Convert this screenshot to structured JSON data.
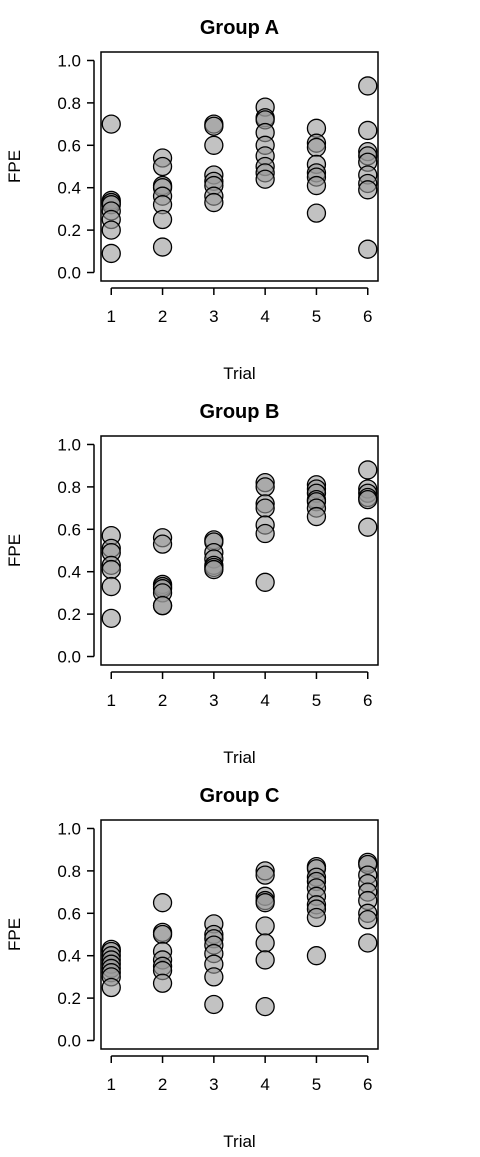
{
  "chart_data": [
    {
      "type": "scatter",
      "title": "Group A",
      "xlabel": "Trial",
      "ylabel": "FPE",
      "x_ticks": [
        "1",
        "2",
        "3",
        "4",
        "5",
        "6"
      ],
      "y_ticks": [
        "0.0",
        "0.2",
        "0.4",
        "0.6",
        "0.8",
        "1.0"
      ],
      "xlim": [
        0.8,
        6.2
      ],
      "ylim": [
        -0.04,
        1.04
      ],
      "grid": false,
      "points": [
        {
          "x": 1,
          "y": 0.7
        },
        {
          "x": 1,
          "y": 0.34
        },
        {
          "x": 1,
          "y": 0.33
        },
        {
          "x": 1,
          "y": 0.32
        },
        {
          "x": 1,
          "y": 0.29
        },
        {
          "x": 1,
          "y": 0.25
        },
        {
          "x": 1,
          "y": 0.2
        },
        {
          "x": 1,
          "y": 0.09
        },
        {
          "x": 2,
          "y": 0.54
        },
        {
          "x": 2,
          "y": 0.5
        },
        {
          "x": 2,
          "y": 0.41
        },
        {
          "x": 2,
          "y": 0.4
        },
        {
          "x": 2,
          "y": 0.36
        },
        {
          "x": 2,
          "y": 0.32
        },
        {
          "x": 2,
          "y": 0.25
        },
        {
          "x": 2,
          "y": 0.12
        },
        {
          "x": 3,
          "y": 0.7
        },
        {
          "x": 3,
          "y": 0.69
        },
        {
          "x": 3,
          "y": 0.6
        },
        {
          "x": 3,
          "y": 0.46
        },
        {
          "x": 3,
          "y": 0.43
        },
        {
          "x": 3,
          "y": 0.41
        },
        {
          "x": 3,
          "y": 0.36
        },
        {
          "x": 3,
          "y": 0.33
        },
        {
          "x": 4,
          "y": 0.78
        },
        {
          "x": 4,
          "y": 0.73
        },
        {
          "x": 4,
          "y": 0.72
        },
        {
          "x": 4,
          "y": 0.66
        },
        {
          "x": 4,
          "y": 0.6
        },
        {
          "x": 4,
          "y": 0.55
        },
        {
          "x": 4,
          "y": 0.5
        },
        {
          "x": 4,
          "y": 0.47
        },
        {
          "x": 4,
          "y": 0.44
        },
        {
          "x": 5,
          "y": 0.68
        },
        {
          "x": 5,
          "y": 0.61
        },
        {
          "x": 5,
          "y": 0.59
        },
        {
          "x": 5,
          "y": 0.51
        },
        {
          "x": 5,
          "y": 0.47
        },
        {
          "x": 5,
          "y": 0.45
        },
        {
          "x": 5,
          "y": 0.41
        },
        {
          "x": 5,
          "y": 0.28
        },
        {
          "x": 6,
          "y": 0.88
        },
        {
          "x": 6,
          "y": 0.67
        },
        {
          "x": 6,
          "y": 0.57
        },
        {
          "x": 6,
          "y": 0.55
        },
        {
          "x": 6,
          "y": 0.52
        },
        {
          "x": 6,
          "y": 0.46
        },
        {
          "x": 6,
          "y": 0.42
        },
        {
          "x": 6,
          "y": 0.39
        },
        {
          "x": 6,
          "y": 0.11
        }
      ]
    },
    {
      "type": "scatter",
      "title": "Group B",
      "xlabel": "Trial",
      "ylabel": "FPE",
      "x_ticks": [
        "1",
        "2",
        "3",
        "4",
        "5",
        "6"
      ],
      "y_ticks": [
        "0.0",
        "0.2",
        "0.4",
        "0.6",
        "0.8",
        "1.0"
      ],
      "xlim": [
        0.8,
        6.2
      ],
      "ylim": [
        -0.04,
        1.04
      ],
      "grid": false,
      "points": [
        {
          "x": 1,
          "y": 0.57
        },
        {
          "x": 1,
          "y": 0.51
        },
        {
          "x": 1,
          "y": 0.49
        },
        {
          "x": 1,
          "y": 0.43
        },
        {
          "x": 1,
          "y": 0.41
        },
        {
          "x": 1,
          "y": 0.33
        },
        {
          "x": 1,
          "y": 0.18
        },
        {
          "x": 2,
          "y": 0.56
        },
        {
          "x": 2,
          "y": 0.53
        },
        {
          "x": 2,
          "y": 0.34
        },
        {
          "x": 2,
          "y": 0.33
        },
        {
          "x": 2,
          "y": 0.32
        },
        {
          "x": 2,
          "y": 0.3
        },
        {
          "x": 2,
          "y": 0.24
        },
        {
          "x": 2,
          "y": 0.24
        },
        {
          "x": 3,
          "y": 0.55
        },
        {
          "x": 3,
          "y": 0.54
        },
        {
          "x": 3,
          "y": 0.49
        },
        {
          "x": 3,
          "y": 0.46
        },
        {
          "x": 3,
          "y": 0.43
        },
        {
          "x": 3,
          "y": 0.42
        },
        {
          "x": 3,
          "y": 0.41
        },
        {
          "x": 4,
          "y": 0.82
        },
        {
          "x": 4,
          "y": 0.8
        },
        {
          "x": 4,
          "y": 0.72
        },
        {
          "x": 4,
          "y": 0.7
        },
        {
          "x": 4,
          "y": 0.62
        },
        {
          "x": 4,
          "y": 0.58
        },
        {
          "x": 4,
          "y": 0.35
        },
        {
          "x": 5,
          "y": 0.81
        },
        {
          "x": 5,
          "y": 0.79
        },
        {
          "x": 5,
          "y": 0.77
        },
        {
          "x": 5,
          "y": 0.74
        },
        {
          "x": 5,
          "y": 0.73
        },
        {
          "x": 5,
          "y": 0.7
        },
        {
          "x": 5,
          "y": 0.66
        },
        {
          "x": 6,
          "y": 0.88
        },
        {
          "x": 6,
          "y": 0.79
        },
        {
          "x": 6,
          "y": 0.77
        },
        {
          "x": 6,
          "y": 0.75
        },
        {
          "x": 6,
          "y": 0.74
        },
        {
          "x": 6,
          "y": 0.61
        }
      ]
    },
    {
      "type": "scatter",
      "title": "Group C",
      "xlabel": "Trial",
      "ylabel": "FPE",
      "x_ticks": [
        "1",
        "2",
        "3",
        "4",
        "5",
        "6"
      ],
      "y_ticks": [
        "0.0",
        "0.2",
        "0.4",
        "0.6",
        "0.8",
        "1.0"
      ],
      "xlim": [
        0.8,
        6.2
      ],
      "ylim": [
        -0.04,
        1.04
      ],
      "grid": false,
      "points": [
        {
          "x": 1,
          "y": 0.43
        },
        {
          "x": 1,
          "y": 0.42
        },
        {
          "x": 1,
          "y": 0.4
        },
        {
          "x": 1,
          "y": 0.38
        },
        {
          "x": 1,
          "y": 0.36
        },
        {
          "x": 1,
          "y": 0.34
        },
        {
          "x": 1,
          "y": 0.32
        },
        {
          "x": 1,
          "y": 0.3
        },
        {
          "x": 1,
          "y": 0.25
        },
        {
          "x": 2,
          "y": 0.65
        },
        {
          "x": 2,
          "y": 0.51
        },
        {
          "x": 2,
          "y": 0.5
        },
        {
          "x": 2,
          "y": 0.42
        },
        {
          "x": 2,
          "y": 0.38
        },
        {
          "x": 2,
          "y": 0.35
        },
        {
          "x": 2,
          "y": 0.33
        },
        {
          "x": 2,
          "y": 0.27
        },
        {
          "x": 3,
          "y": 0.55
        },
        {
          "x": 3,
          "y": 0.5
        },
        {
          "x": 3,
          "y": 0.48
        },
        {
          "x": 3,
          "y": 0.45
        },
        {
          "x": 3,
          "y": 0.41
        },
        {
          "x": 3,
          "y": 0.36
        },
        {
          "x": 3,
          "y": 0.3
        },
        {
          "x": 3,
          "y": 0.17
        },
        {
          "x": 4,
          "y": 0.8
        },
        {
          "x": 4,
          "y": 0.78
        },
        {
          "x": 4,
          "y": 0.68
        },
        {
          "x": 4,
          "y": 0.66
        },
        {
          "x": 4,
          "y": 0.65
        },
        {
          "x": 4,
          "y": 0.54
        },
        {
          "x": 4,
          "y": 0.46
        },
        {
          "x": 4,
          "y": 0.38
        },
        {
          "x": 4,
          "y": 0.16
        },
        {
          "x": 5,
          "y": 0.82
        },
        {
          "x": 5,
          "y": 0.81
        },
        {
          "x": 5,
          "y": 0.77
        },
        {
          "x": 5,
          "y": 0.75
        },
        {
          "x": 5,
          "y": 0.72
        },
        {
          "x": 5,
          "y": 0.68
        },
        {
          "x": 5,
          "y": 0.64
        },
        {
          "x": 5,
          "y": 0.62
        },
        {
          "x": 5,
          "y": 0.58
        },
        {
          "x": 5,
          "y": 0.4
        },
        {
          "x": 6,
          "y": 0.84
        },
        {
          "x": 6,
          "y": 0.83
        },
        {
          "x": 6,
          "y": 0.78
        },
        {
          "x": 6,
          "y": 0.74
        },
        {
          "x": 6,
          "y": 0.7
        },
        {
          "x": 6,
          "y": 0.66
        },
        {
          "x": 6,
          "y": 0.6
        },
        {
          "x": 6,
          "y": 0.57
        },
        {
          "x": 6,
          "y": 0.46
        }
      ]
    }
  ],
  "colors": {
    "point_fill": "#999999",
    "point_stroke": "#000000",
    "axis": "#000000"
  }
}
